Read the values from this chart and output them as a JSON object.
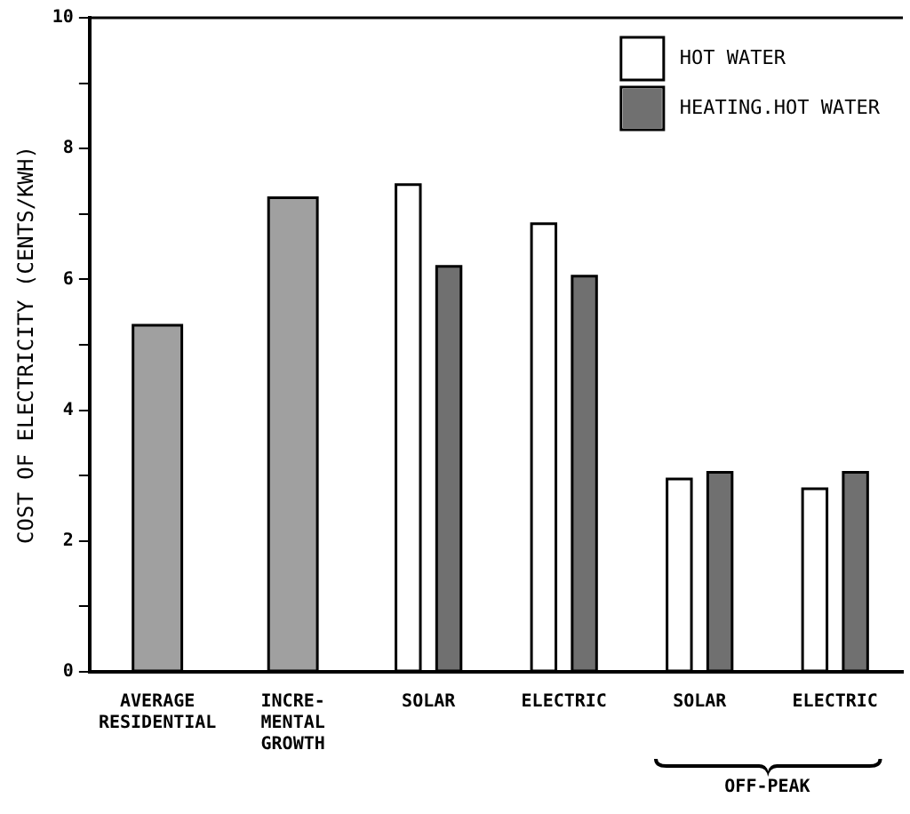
{
  "chart_data": {
    "type": "bar",
    "ylabel": "COST OF ELECTRICITY (CENTS/KWH)",
    "categories": [
      "AVERAGE\nRESIDENTIAL",
      "INCRE-\nMENTAL\nGROWTH",
      "SOLAR",
      "ELECTRIC",
      "SOLAR",
      "ELECTRIC"
    ],
    "series": [
      {
        "color": "#a0a0a0",
        "values": [
          5.3,
          7.25,
          null,
          null,
          null,
          null
        ]
      },
      {
        "name": "HOT WATER",
        "color": "#ffffff",
        "values": [
          null,
          null,
          7.45,
          6.85,
          2.95,
          2.8
        ]
      },
      {
        "name": "HEATING.HOT WATER",
        "color": "#707070",
        "values": [
          null,
          null,
          6.2,
          6.05,
          3.05,
          3.05
        ]
      }
    ],
    "ylim": [
      0,
      10
    ],
    "yticks": [
      0,
      {
        "value": 1,
        "label": null
      },
      2,
      {
        "value": 3,
        "label": null
      },
      4,
      {
        "value": 5,
        "label": null
      },
      6,
      {
        "value": 7,
        "label": null
      },
      8,
      {
        "value": 9,
        "label": null
      },
      10
    ],
    "grid": false,
    "legend": "top right",
    "annotations": [
      {
        "text": "OFF-PEAK"
      }
    ]
  }
}
